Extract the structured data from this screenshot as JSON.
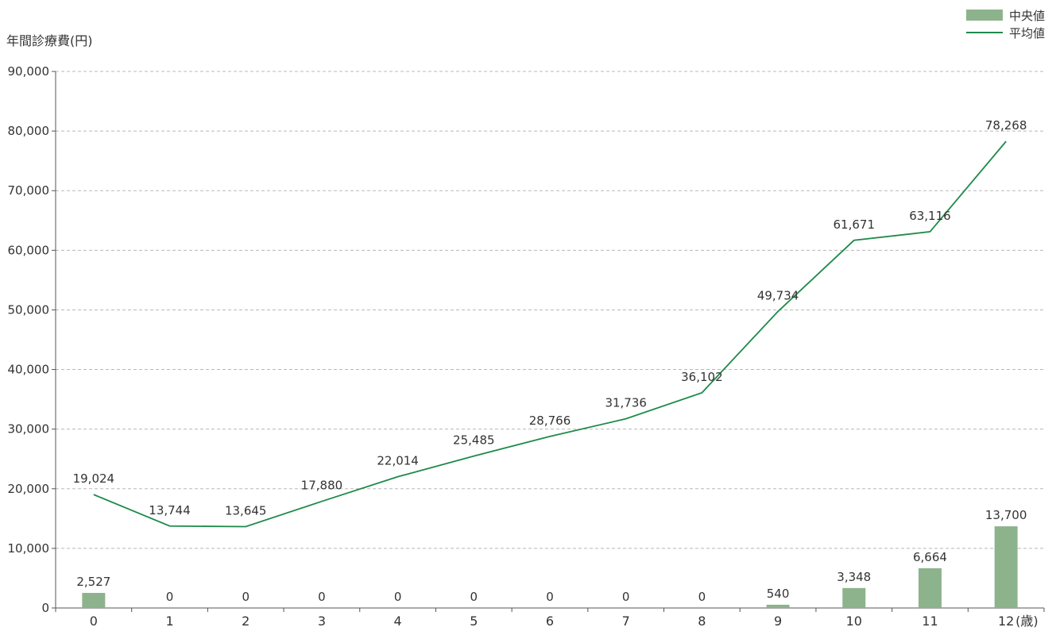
{
  "chart_data": {
    "type": "bar+line",
    "ylabel": "年間診療費(円)",
    "x_unit": "(歳)",
    "categories": [
      "0",
      "1",
      "2",
      "3",
      "4",
      "5",
      "6",
      "7",
      "8",
      "9",
      "10",
      "11",
      "12"
    ],
    "y_ticks": [
      "0",
      "10,000",
      "20,000",
      "30,000",
      "40,000",
      "50,000",
      "60,000",
      "70,000",
      "80,000",
      "90,000"
    ],
    "ylim": [
      0,
      90000
    ],
    "grid": true,
    "legend_position": "top-right",
    "series": [
      {
        "name": "中央値",
        "kind": "bar",
        "color": "#8db38d",
        "values": [
          2527,
          0,
          0,
          0,
          0,
          0,
          0,
          0,
          0,
          540,
          3348,
          6664,
          13700
        ],
        "labels": [
          "2,527",
          "0",
          "0",
          "0",
          "0",
          "0",
          "0",
          "0",
          "0",
          "540",
          "3,348",
          "6,664",
          "13,700"
        ]
      },
      {
        "name": "平均値",
        "kind": "line",
        "color": "#1e8a4a",
        "values": [
          19024,
          13744,
          13645,
          17880,
          22014,
          25485,
          28766,
          31736,
          36102,
          49734,
          61671,
          63116,
          78268
        ],
        "labels": [
          "19,024",
          "13,744",
          "13,645",
          "17,880",
          "22,014",
          "25,485",
          "28,766",
          "31,736",
          "36,102",
          "49,734",
          "61,671",
          "63,116",
          "78,268"
        ]
      }
    ]
  }
}
